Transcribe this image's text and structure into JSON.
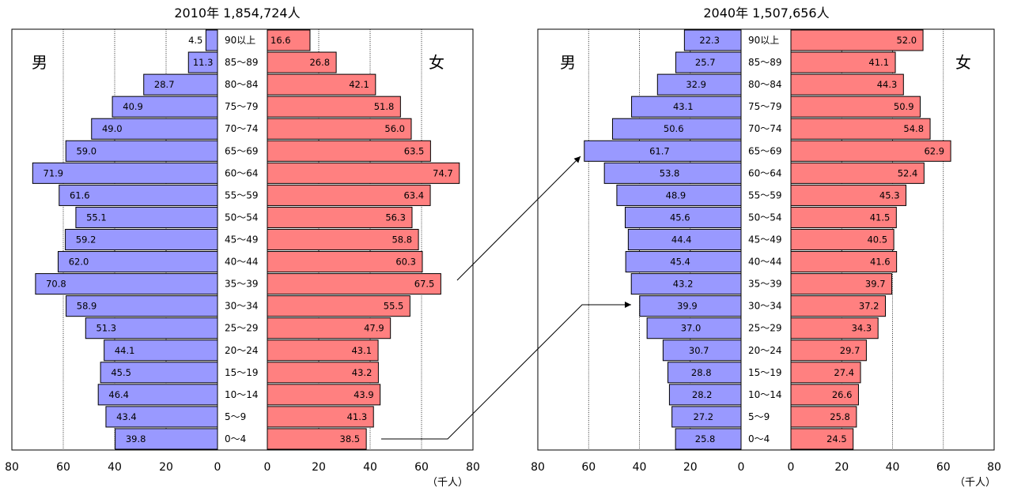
{
  "charts": [
    {
      "title": "2010年 1,854,724人",
      "male_label": "男",
      "female_label": "女",
      "unit_label": "（千人）",
      "x_ticks_left": [
        "80",
        "60",
        "40",
        "20",
        "0"
      ],
      "x_ticks_right": [
        "0",
        "20",
        "40",
        "60",
        "80"
      ]
    },
    {
      "title": "2040年 1,507,656人",
      "male_label": "男",
      "female_label": "女",
      "unit_label": "（千人）",
      "x_ticks_left": [
        "80",
        "60",
        "40",
        "20",
        "0"
      ],
      "x_ticks_right": [
        "0",
        "20",
        "40",
        "60",
        "80"
      ]
    }
  ],
  "colors": {
    "male": "#9999ff",
    "female": "#ff8080",
    "border": "#000000"
  },
  "chart_data": [
    {
      "type": "bar",
      "orientation": "population-pyramid",
      "title": "2010年 1,854,724人",
      "categories": [
        "90以上",
        "85～89",
        "80～84",
        "75～79",
        "70～74",
        "65～69",
        "60～64",
        "55～59",
        "50～54",
        "45～49",
        "40～44",
        "35～39",
        "30～34",
        "25～29",
        "20～24",
        "15～19",
        "10～14",
        "5～9",
        "0～4"
      ],
      "series": [
        {
          "name": "男",
          "values": [
            4.5,
            11.3,
            28.7,
            40.9,
            49.0,
            59.0,
            71.9,
            61.6,
            55.1,
            59.2,
            62.0,
            70.8,
            58.9,
            51.3,
            44.1,
            45.5,
            46.4,
            43.4,
            39.8
          ]
        },
        {
          "name": "女",
          "values": [
            16.6,
            26.8,
            42.1,
            51.8,
            56.0,
            63.5,
            74.7,
            63.4,
            56.3,
            58.8,
            60.3,
            67.5,
            55.5,
            47.9,
            43.1,
            43.2,
            43.9,
            41.3,
            38.5
          ]
        }
      ],
      "value_labels": {
        "male": [
          "4.5",
          "11.3",
          "28.7",
          "40.9",
          "49.0",
          "59.0",
          "71.9",
          "61.6",
          "55.1",
          "59.2",
          "62.0",
          "70.8",
          "58.9",
          "51.3",
          "44.1",
          "45.5",
          "46.4",
          "43.4",
          "39.8"
        ],
        "female": [
          "16.6",
          "26.8",
          "42.1",
          "51.8",
          "56.0",
          "63.5",
          "74.7",
          "63.4",
          "56.3",
          "58.8",
          "60.3",
          "67.5",
          "55.5",
          "47.9",
          "43.1",
          "43.2",
          "43.9",
          "41.3",
          "38.5"
        ]
      },
      "xlim": [
        0,
        80
      ],
      "grid": true
    },
    {
      "type": "bar",
      "orientation": "population-pyramid",
      "title": "2040年 1,507,656人",
      "categories": [
        "90以上",
        "85～89",
        "80～84",
        "75～79",
        "70～74",
        "65～69",
        "60～64",
        "55～59",
        "50～54",
        "45～49",
        "40～44",
        "35～39",
        "30～34",
        "25～29",
        "20～24",
        "15～19",
        "10～14",
        "5～9",
        "0～4"
      ],
      "series": [
        {
          "name": "男",
          "values": [
            22.3,
            25.7,
            32.9,
            43.1,
            50.6,
            61.7,
            53.8,
            48.9,
            45.6,
            44.4,
            45.4,
            43.2,
            39.9,
            37.0,
            30.7,
            28.8,
            28.2,
            27.2,
            25.8
          ]
        },
        {
          "name": "女",
          "values": [
            52.0,
            41.1,
            44.3,
            50.9,
            54.8,
            62.9,
            52.4,
            45.3,
            41.5,
            40.5,
            41.6,
            39.7,
            37.2,
            34.3,
            29.7,
            27.4,
            26.6,
            25.8,
            24.5
          ]
        }
      ],
      "value_labels": {
        "male": [
          "22.3",
          "25.7",
          "32.9",
          "43.1",
          "50.6",
          "61.7",
          "53.8",
          "48.9",
          "45.6",
          "44.4",
          "45.4",
          "43.2",
          "39.9",
          "37.0",
          "30.7",
          "28.8",
          "28.2",
          "27.2",
          "25.8"
        ],
        "female": [
          "52.0",
          "41.1",
          "44.3",
          "50.9",
          "54.8",
          "62.9",
          "52.4",
          "45.3",
          "41.5",
          "40.5",
          "41.6",
          "39.7",
          "37.2",
          "34.3",
          "29.7",
          "27.4",
          "26.6",
          "25.8",
          "24.5"
        ]
      },
      "xlim": [
        0,
        80
      ],
      "grid": true
    }
  ]
}
